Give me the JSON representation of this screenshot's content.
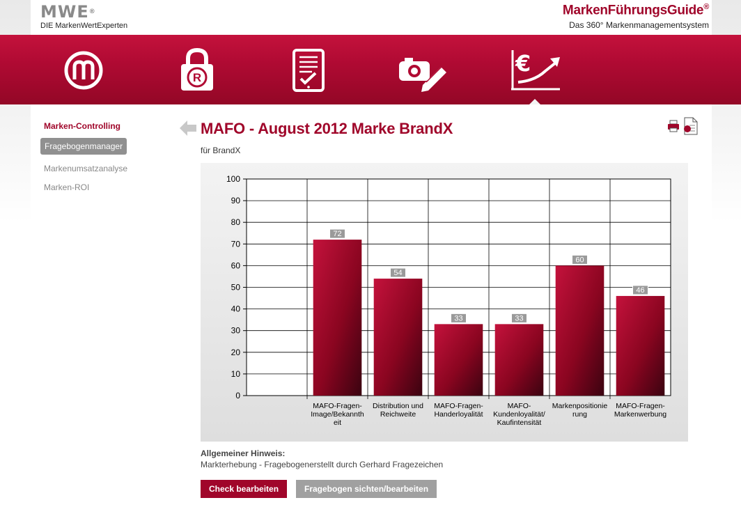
{
  "brand": {
    "logo_mark": "MWE",
    "logo_tagline": "DIE MarkenWertExperten",
    "product_title": "MarkenFührungsGuide",
    "product_title_reg": "®",
    "product_subtitle": "Das 360° Markenmanagementsystem"
  },
  "nav": {
    "items": [
      {
        "icon": "brand-m-circle-icon"
      },
      {
        "icon": "registered-lock-icon"
      },
      {
        "icon": "checklist-tablet-icon"
      },
      {
        "icon": "camera-pencil-icon"
      },
      {
        "icon": "euro-growth-chart-icon"
      }
    ],
    "active_index": 4
  },
  "sidebar": {
    "heading": "Marken-Controlling",
    "items": [
      {
        "label": "Fragebogenmanager"
      },
      {
        "label": "Markenumsatzanalyse"
      },
      {
        "label": "Marken-ROI"
      }
    ]
  },
  "page": {
    "title": "MAFO - August 2012 Marke BrandX",
    "subtitle": "für BrandX"
  },
  "notice": {
    "heading": "Allgemeiner Hinweis:",
    "text": "Markterhebung - Fragebogenerstellt durch Gerhard Fragezeichen"
  },
  "buttons": {
    "primary": "Check bearbeiten",
    "secondary": "Fragebogen sichten/bearbeiten"
  },
  "colors": {
    "accent": "#a0062a",
    "bar_light": "#c4123c",
    "bar_dark": "#3a0310",
    "label_bg": "#9a9a9a"
  },
  "chart_data": {
    "type": "bar",
    "categories": [
      [
        "MAFO-Fragen-",
        "Image/Bekannth",
        "eit"
      ],
      [
        "Distribution und",
        "Reichweite"
      ],
      [
        "MAFO-Fragen-",
        "Handerloyalität"
      ],
      [
        "MAFO-",
        "Kundenloyalität/",
        "Kaufintensität"
      ],
      [
        "Markenpositionie",
        "rung"
      ],
      [
        "MAFO-Fragen-",
        "Markenwerbung"
      ]
    ],
    "values": [
      72,
      54,
      33,
      33,
      60,
      46
    ],
    "ylim": [
      0,
      100
    ],
    "yticks": [
      0,
      10,
      20,
      30,
      40,
      50,
      60,
      70,
      80,
      90,
      100
    ],
    "grid": true,
    "title": "",
    "xlabel": "",
    "ylabel": ""
  }
}
